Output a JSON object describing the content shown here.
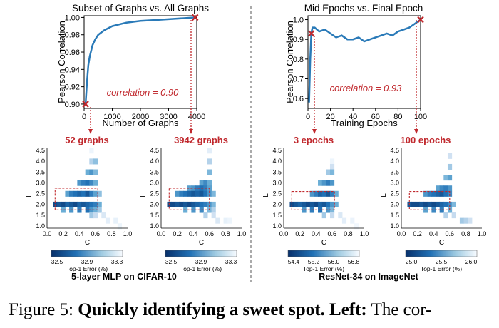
{
  "colors": {
    "line": "#2a7ab8",
    "marker": "#c0282d",
    "annot": "#c0282d",
    "heat_low": "#08306b",
    "heat_high": "#f7fbff"
  },
  "panels": [
    {
      "title": "Subset of Graphs vs. All Graphs",
      "xlabel": "Number of Graphs",
      "ylabel": "Pearson Correlation",
      "annotation": "correlation = 0.90",
      "x_ticks": [
        "0",
        "1000",
        "2000",
        "3000",
        "4000"
      ],
      "y_ticks": [
        "0.90",
        "0.92",
        "0.94",
        "0.96",
        "0.98",
        "1.00"
      ]
    },
    {
      "title": "Mid Epochs vs. Final Epoch",
      "xlabel": "Training Epochs",
      "ylabel": "Pearson Correlation",
      "annotation": "correlation = 0.93",
      "x_ticks": [
        "0",
        "20",
        "40",
        "60",
        "80",
        "100"
      ],
      "y_ticks": [
        "0.6",
        "0.7",
        "0.8",
        "0.9",
        "1.0"
      ]
    }
  ],
  "heatmaps": [
    {
      "title": "52 graphs",
      "colorbar": {
        "ticks": [
          "32.5",
          "32.9",
          "33.3"
        ],
        "label": "Top-1 Error (%)"
      }
    },
    {
      "title": "3942 graphs",
      "colorbar": {
        "ticks": [
          "32.5",
          "32.9",
          "33.3"
        ],
        "label": "Top-1 Error (%)"
      }
    },
    {
      "title": "3 epochs",
      "colorbar": {
        "ticks": [
          "54.4",
          "55.2",
          "56.0",
          "56.8"
        ],
        "label": "Top-1 Error (%)"
      }
    },
    {
      "title": "100 epochs",
      "colorbar": {
        "ticks": [
          "25.0",
          "25.5",
          "26.0"
        ],
        "label": "Top-1 Error (%)"
      }
    }
  ],
  "heat_axes": {
    "xlabel": "C",
    "ylabel": "L",
    "x_ticks": [
      "0.0",
      "0.2",
      "0.4",
      "0.6",
      "0.8",
      "1.0"
    ],
    "y_ticks": [
      "1.0",
      "1.5",
      "2.0",
      "2.5",
      "3.0",
      "3.5",
      "4.0",
      "4.5"
    ]
  },
  "group_labels": [
    "5-layer MLP on CIFAR-10",
    "ResNet-34 on ImageNet"
  ],
  "caption": {
    "prefix": "Figure 5: ",
    "bold": "Quickly identifying a sweet spot. Left:",
    "rest": " The cor-"
  },
  "chart_data": [
    {
      "type": "line",
      "title": "Subset of Graphs vs. All Graphs",
      "xlabel": "Number of Graphs",
      "ylabel": "Pearson Correlation",
      "xlim": [
        0,
        4000
      ],
      "ylim": [
        0.895,
        1.002
      ],
      "x": [
        52,
        100,
        150,
        200,
        300,
        400,
        500,
        700,
        1000,
        1500,
        2000,
        2500,
        3000,
        3500,
        3942
      ],
      "y": [
        0.9,
        0.925,
        0.945,
        0.955,
        0.968,
        0.975,
        0.98,
        0.985,
        0.99,
        0.994,
        0.996,
        0.997,
        0.998,
        0.999,
        1.0
      ],
      "markers": [
        {
          "x": 52,
          "y": 0.9
        },
        {
          "x": 3942,
          "y": 1.0
        }
      ],
      "grid": false
    },
    {
      "type": "line",
      "title": "Mid Epochs vs. Final Epoch",
      "xlabel": "Training Epochs",
      "ylabel": "Pearson Correlation",
      "xlim": [
        0,
        100
      ],
      "ylim": [
        0.55,
        1.02
      ],
      "x": [
        1,
        2,
        3,
        4,
        6,
        8,
        10,
        15,
        20,
        25,
        30,
        35,
        40,
        45,
        50,
        55,
        60,
        65,
        70,
        75,
        80,
        85,
        90,
        95,
        100
      ],
      "y": [
        0.58,
        0.8,
        0.93,
        0.96,
        0.96,
        0.95,
        0.94,
        0.95,
        0.93,
        0.91,
        0.92,
        0.9,
        0.9,
        0.91,
        0.89,
        0.9,
        0.91,
        0.92,
        0.93,
        0.92,
        0.94,
        0.95,
        0.96,
        0.98,
        1.0
      ],
      "markers": [
        {
          "x": 3,
          "y": 0.93
        },
        {
          "x": 100,
          "y": 1.0
        }
      ],
      "grid": false
    },
    {
      "type": "heatmap",
      "title": "52 graphs",
      "xlabel": "C",
      "ylabel": "L",
      "cells": [
        [
          0.55,
          4.5,
          0.05
        ],
        [
          0.55,
          4.0,
          0.3
        ],
        [
          0.6,
          4.0,
          0.4
        ],
        [
          0.5,
          3.5,
          0.5
        ],
        [
          0.55,
          3.5,
          0.6
        ],
        [
          0.6,
          3.5,
          0.45
        ],
        [
          0.4,
          3.0,
          0.6
        ],
        [
          0.45,
          3.0,
          0.7
        ],
        [
          0.5,
          3.0,
          0.75
        ],
        [
          0.55,
          3.0,
          0.65
        ],
        [
          0.6,
          3.0,
          0.5
        ],
        [
          0.25,
          2.5,
          0.55
        ],
        [
          0.3,
          2.5,
          0.7
        ],
        [
          0.35,
          2.5,
          0.75
        ],
        [
          0.4,
          2.5,
          0.8
        ],
        [
          0.45,
          2.5,
          0.75
        ],
        [
          0.5,
          2.5,
          0.85
        ],
        [
          0.55,
          2.5,
          0.7
        ],
        [
          0.6,
          2.5,
          0.55
        ],
        [
          0.65,
          2.5,
          0.4
        ],
        [
          0.1,
          2.0,
          0.9
        ],
        [
          0.15,
          2.0,
          0.85
        ],
        [
          0.2,
          2.0,
          0.9
        ],
        [
          0.25,
          2.0,
          0.8
        ],
        [
          0.3,
          2.0,
          0.85
        ],
        [
          0.35,
          2.0,
          0.9
        ],
        [
          0.4,
          2.0,
          0.8
        ],
        [
          0.45,
          2.0,
          0.85
        ],
        [
          0.5,
          2.0,
          0.8
        ],
        [
          0.55,
          2.0,
          0.75
        ],
        [
          0.6,
          2.0,
          0.7
        ],
        [
          0.65,
          2.0,
          0.5
        ],
        [
          0.2,
          1.75,
          0.5
        ],
        [
          0.3,
          1.75,
          0.6
        ],
        [
          0.4,
          1.75,
          0.7
        ],
        [
          0.5,
          1.75,
          0.75
        ],
        [
          0.55,
          1.75,
          0.6
        ],
        [
          0.6,
          1.75,
          0.5
        ],
        [
          0.65,
          1.75,
          0.35
        ],
        [
          0.55,
          1.5,
          0.35
        ],
        [
          0.6,
          1.5,
          0.25
        ],
        [
          0.7,
          1.5,
          0.15
        ],
        [
          0.75,
          1.25,
          0.1
        ],
        [
          0.85,
          1.25,
          0.08
        ],
        [
          0.9,
          1.0,
          0.05
        ]
      ],
      "colorbar": [
        32.5,
        32.9,
        33.3
      ]
    },
    {
      "type": "heatmap",
      "title": "3942 graphs",
      "xlabel": "C",
      "ylabel": "L",
      "cells": [
        [
          0.6,
          4.5,
          0.1
        ],
        [
          0.6,
          4.0,
          0.3
        ],
        [
          0.6,
          3.5,
          0.45
        ],
        [
          0.5,
          3.0,
          0.55
        ],
        [
          0.55,
          3.0,
          0.65
        ],
        [
          0.6,
          3.0,
          0.5
        ],
        [
          0.35,
          2.75,
          0.55
        ],
        [
          0.4,
          2.75,
          0.6
        ],
        [
          0.45,
          2.75,
          0.7
        ],
        [
          0.5,
          2.75,
          0.75
        ],
        [
          0.55,
          2.75,
          0.7
        ],
        [
          0.6,
          2.75,
          0.55
        ],
        [
          0.2,
          2.5,
          0.6
        ],
        [
          0.25,
          2.5,
          0.7
        ],
        [
          0.3,
          2.5,
          0.75
        ],
        [
          0.35,
          2.5,
          0.8
        ],
        [
          0.4,
          2.5,
          0.85
        ],
        [
          0.45,
          2.5,
          0.8
        ],
        [
          0.5,
          2.5,
          0.85
        ],
        [
          0.55,
          2.5,
          0.75
        ],
        [
          0.6,
          2.5,
          0.6
        ],
        [
          0.65,
          2.5,
          0.45
        ],
        [
          0.1,
          2.0,
          0.9
        ],
        [
          0.15,
          2.0,
          0.9
        ],
        [
          0.2,
          2.0,
          0.85
        ],
        [
          0.25,
          2.0,
          0.9
        ],
        [
          0.3,
          2.0,
          0.85
        ],
        [
          0.35,
          2.0,
          0.9
        ],
        [
          0.4,
          2.0,
          0.85
        ],
        [
          0.45,
          2.0,
          0.8
        ],
        [
          0.5,
          2.0,
          0.75
        ],
        [
          0.55,
          2.0,
          0.7
        ],
        [
          0.6,
          2.0,
          0.6
        ],
        [
          0.65,
          2.0,
          0.45
        ],
        [
          0.3,
          1.75,
          0.5
        ],
        [
          0.4,
          1.75,
          0.6
        ],
        [
          0.5,
          1.75,
          0.65
        ],
        [
          0.6,
          1.75,
          0.45
        ],
        [
          0.65,
          1.75,
          0.3
        ],
        [
          0.55,
          1.5,
          0.3
        ],
        [
          0.65,
          1.5,
          0.2
        ],
        [
          0.7,
          1.25,
          0.15
        ],
        [
          0.8,
          1.25,
          0.08
        ],
        [
          0.85,
          1.25,
          0.05
        ]
      ],
      "colorbar": [
        32.5,
        32.9,
        33.3
      ]
    },
    {
      "type": "heatmap",
      "title": "3 epochs",
      "xlabel": "C",
      "ylabel": "L",
      "cells": [
        [
          0.6,
          4.0,
          0.05
        ],
        [
          0.6,
          3.75,
          0.2
        ],
        [
          0.55,
          3.5,
          0.35
        ],
        [
          0.6,
          3.5,
          0.45
        ],
        [
          0.45,
          3.0,
          0.5
        ],
        [
          0.5,
          3.0,
          0.6
        ],
        [
          0.55,
          3.0,
          0.7
        ],
        [
          0.6,
          3.0,
          0.6
        ],
        [
          0.35,
          2.5,
          0.6
        ],
        [
          0.4,
          2.5,
          0.7
        ],
        [
          0.45,
          2.5,
          0.8
        ],
        [
          0.5,
          2.5,
          0.75
        ],
        [
          0.55,
          2.5,
          0.85
        ],
        [
          0.6,
          2.5,
          0.7
        ],
        [
          0.65,
          2.5,
          0.5
        ],
        [
          0.1,
          2.0,
          0.9
        ],
        [
          0.15,
          2.0,
          0.85
        ],
        [
          0.2,
          2.0,
          0.8
        ],
        [
          0.25,
          2.0,
          0.85
        ],
        [
          0.3,
          2.0,
          0.9
        ],
        [
          0.35,
          2.0,
          0.85
        ],
        [
          0.4,
          2.0,
          0.9
        ],
        [
          0.45,
          2.0,
          0.8
        ],
        [
          0.5,
          2.0,
          0.85
        ],
        [
          0.55,
          2.0,
          0.75
        ],
        [
          0.6,
          2.0,
          0.6
        ],
        [
          0.65,
          2.0,
          0.5
        ],
        [
          0.25,
          1.75,
          0.6
        ],
        [
          0.35,
          1.75,
          0.7
        ],
        [
          0.45,
          1.75,
          0.75
        ],
        [
          0.55,
          1.75,
          0.6
        ],
        [
          0.6,
          1.75,
          0.45
        ],
        [
          0.5,
          1.5,
          0.35
        ],
        [
          0.6,
          1.5,
          0.25
        ],
        [
          0.7,
          1.5,
          0.15
        ],
        [
          0.75,
          1.25,
          0.1
        ],
        [
          0.85,
          1.25,
          0.06
        ],
        [
          0.9,
          1.0,
          0.03
        ]
      ],
      "colorbar": [
        54.4,
        55.2,
        56.0,
        56.8
      ]
    },
    {
      "type": "heatmap",
      "title": "100 epochs",
      "xlabel": "C",
      "ylabel": "L",
      "cells": [
        [
          0.6,
          4.25,
          0.2
        ],
        [
          0.6,
          3.75,
          0.35
        ],
        [
          0.55,
          3.25,
          0.45
        ],
        [
          0.6,
          3.25,
          0.55
        ],
        [
          0.45,
          2.75,
          0.55
        ],
        [
          0.5,
          2.75,
          0.65
        ],
        [
          0.55,
          2.75,
          0.7
        ],
        [
          0.6,
          2.75,
          0.6
        ],
        [
          0.3,
          2.5,
          0.6
        ],
        [
          0.35,
          2.5,
          0.7
        ],
        [
          0.4,
          2.5,
          0.75
        ],
        [
          0.45,
          2.5,
          0.8
        ],
        [
          0.5,
          2.5,
          0.85
        ],
        [
          0.55,
          2.5,
          0.75
        ],
        [
          0.6,
          2.5,
          0.65
        ],
        [
          0.1,
          2.0,
          0.85
        ],
        [
          0.15,
          2.0,
          0.9
        ],
        [
          0.2,
          2.0,
          0.9
        ],
        [
          0.25,
          2.0,
          0.85
        ],
        [
          0.3,
          2.0,
          0.9
        ],
        [
          0.35,
          2.0,
          0.85
        ],
        [
          0.4,
          2.0,
          0.9
        ],
        [
          0.45,
          2.0,
          0.85
        ],
        [
          0.5,
          2.0,
          0.8
        ],
        [
          0.55,
          2.0,
          0.75
        ],
        [
          0.6,
          2.0,
          0.65
        ],
        [
          0.65,
          2.0,
          0.45
        ],
        [
          0.3,
          1.75,
          0.55
        ],
        [
          0.4,
          1.75,
          0.65
        ],
        [
          0.5,
          1.75,
          0.7
        ],
        [
          0.6,
          1.75,
          0.5
        ],
        [
          0.55,
          1.5,
          0.3
        ],
        [
          0.65,
          1.5,
          0.25
        ],
        [
          0.75,
          1.25,
          0.35
        ],
        [
          0.8,
          1.25,
          0.3
        ],
        [
          0.85,
          1.25,
          0.2
        ]
      ],
      "colorbar": [
        25.0,
        25.5,
        26.0
      ]
    }
  ]
}
